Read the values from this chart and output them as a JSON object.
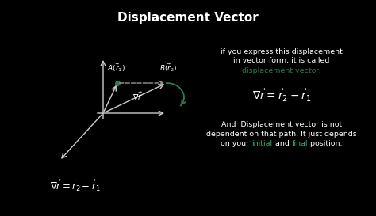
{
  "title": "Displacement Vector",
  "bg_color": "#000000",
  "text_color": "#ffffff",
  "green_color": "#2a7a50",
  "bright_green": "#3aaa6a",
  "axis_color": "#cccccc",
  "dashed_color": "#999999",
  "right_text_1": "if you express this displacement",
  "right_text_2": "in vector form, it is called",
  "right_text_3": "displacement vector.",
  "right_text_4": "And  Displacement vector is not",
  "right_text_5": "dependent on that path. It just depends",
  "right_text_6a": "on your ",
  "right_text_6b": "initial",
  "right_text_6c": " and ",
  "right_text_6d": "final",
  "right_text_6e": " position.",
  "formula_main": "$\\nabla\\vec{r} = \\vec{r}_2 - \\vec{r}_1$",
  "bottom_left_formula": "$\\nabla\\vec{r} = \\vec{r}_2 - \\vec{r}_1$"
}
